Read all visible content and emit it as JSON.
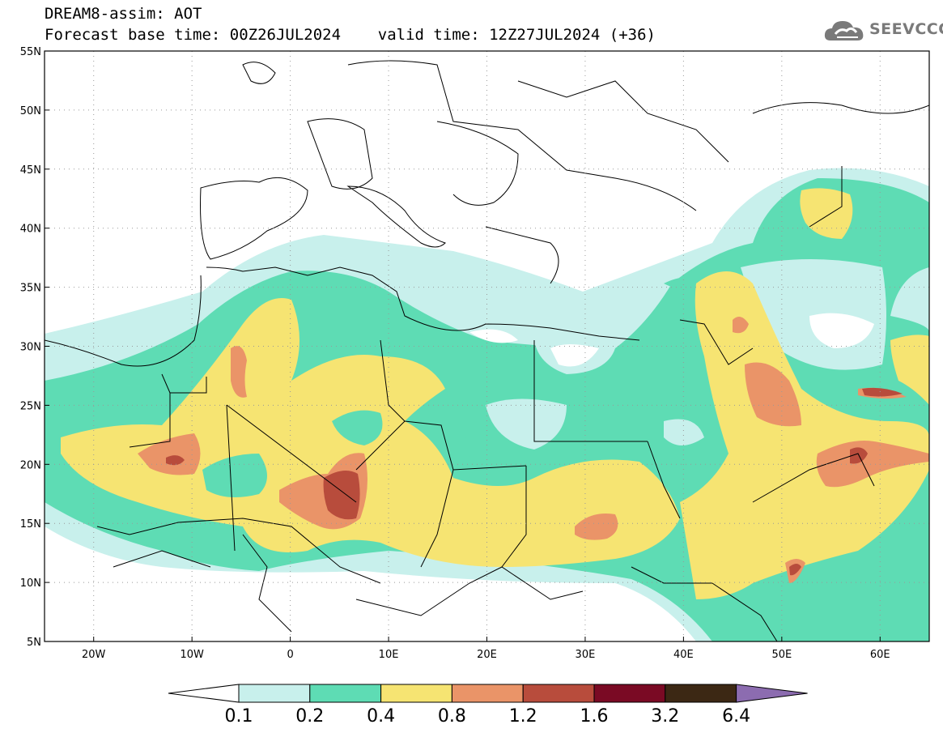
{
  "header": {
    "line1": "DREAM8-assim: AOT",
    "line2": "Forecast base time: 00Z26JUL2024    valid time: 12Z27JUL2024 (+36)"
  },
  "logo": {
    "text": "SEEVCCC",
    "icon": "cloud-icon"
  },
  "map": {
    "lon_range": [
      -25,
      65
    ],
    "lat_range": [
      5,
      55
    ],
    "lon_ticks": [
      {
        "lon": -20,
        "label": "20W"
      },
      {
        "lon": -10,
        "label": "10W"
      },
      {
        "lon": 0,
        "label": "0"
      },
      {
        "lon": 10,
        "label": "10E"
      },
      {
        "lon": 20,
        "label": "20E"
      },
      {
        "lon": 30,
        "label": "30E"
      },
      {
        "lon": 40,
        "label": "40E"
      },
      {
        "lon": 50,
        "label": "50E"
      },
      {
        "lon": 60,
        "label": "60E"
      }
    ],
    "lat_ticks": [
      {
        "lat": 55,
        "label": "55N"
      },
      {
        "lat": 50,
        "label": "50N"
      },
      {
        "lat": 45,
        "label": "45N"
      },
      {
        "lat": 40,
        "label": "40N"
      },
      {
        "lat": 35,
        "label": "35N"
      },
      {
        "lat": 30,
        "label": "30N"
      },
      {
        "lat": 25,
        "label": "25N"
      },
      {
        "lat": 20,
        "label": "20N"
      },
      {
        "lat": 15,
        "label": "15N"
      },
      {
        "lat": 10,
        "label": "10N"
      },
      {
        "lat": 5,
        "label": "5N"
      }
    ]
  },
  "legend": {
    "labels": [
      "0.1",
      "0.2",
      "0.4",
      "0.8",
      "1.2",
      "1.6",
      "3.2",
      "6.4"
    ],
    "colors": [
      "#ffffff",
      "#c8f0ec",
      "#5edcb4",
      "#f6e472",
      "#ea9468",
      "#b84c3c",
      "#7a0a24",
      "#3c2814",
      "#8c6cb0"
    ]
  },
  "colors": {
    "level1": "#c8f0ec",
    "level2": "#5edcb4",
    "level3": "#f6e472",
    "level4": "#ea9468",
    "level5": "#b84c3c",
    "level6": "#7a0a24"
  }
}
